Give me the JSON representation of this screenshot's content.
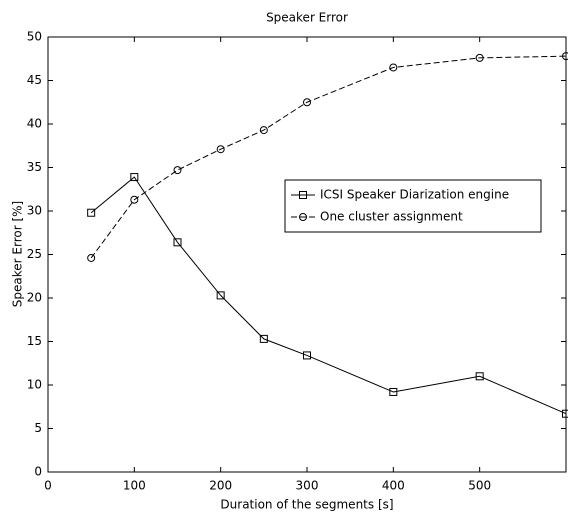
{
  "chart_data": {
    "type": "line",
    "title": "Speaker Error",
    "xlabel": "Duration of the segments [s]",
    "ylabel": "Speaker Error [%]",
    "x": [
      50,
      100,
      150,
      200,
      250,
      300,
      400,
      500,
      600
    ],
    "series": [
      {
        "name": "ICSI Speaker Diarization engine",
        "color": "#000000",
        "marker": "square",
        "dash": "solid",
        "values": [
          29.8,
          33.9,
          26.4,
          20.3,
          15.3,
          13.4,
          9.2,
          11.0,
          6.7
        ]
      },
      {
        "name": "One cluster assignment",
        "color": "#000000",
        "marker": "circle",
        "dash": "dashed",
        "values": [
          24.6,
          31.3,
          34.7,
          37.1,
          39.3,
          42.5,
          46.5,
          47.6,
          47.8
        ]
      }
    ],
    "xlim": [
      0,
      600
    ],
    "xticks": [
      0,
      100,
      200,
      300,
      400,
      500
    ],
    "ylim": [
      0,
      50
    ],
    "yticks": [
      0,
      5,
      10,
      15,
      20,
      25,
      30,
      35,
      40,
      45,
      50
    ],
    "legend": "right",
    "grid": false
  }
}
